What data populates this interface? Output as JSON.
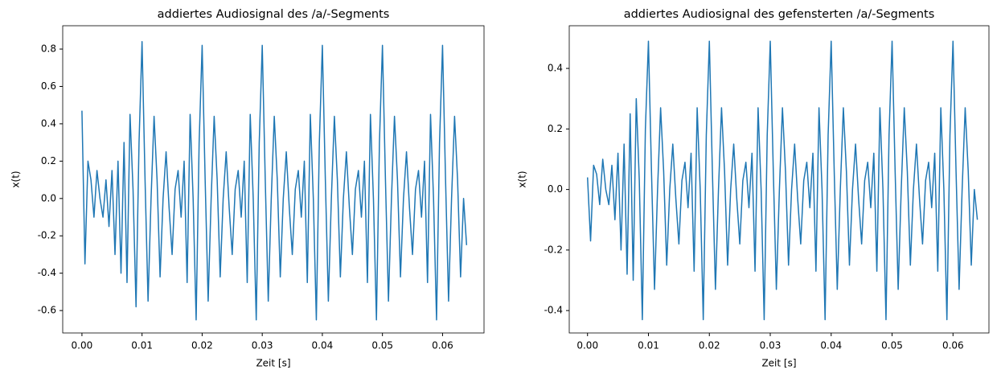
{
  "chart_data": [
    {
      "type": "line",
      "title": "addiertes Audiosignal des /a/-Segments",
      "xlabel": "Zeit [s]",
      "ylabel": "x(t)",
      "x": [
        0,
        0.0005,
        0.001,
        0.0015,
        0.002,
        0.0025,
        0.003,
        0.0035,
        0.004,
        0.0045,
        0.005,
        0.0055,
        0.006,
        0.0065,
        0.007,
        0.0075,
        0.008,
        0.0085,
        0.009,
        0.0095,
        0.01,
        0.0105,
        0.011,
        0.0115,
        0.012,
        0.0125,
        0.013,
        0.0135,
        0.014,
        0.0145,
        0.015,
        0.0155,
        0.016,
        0.0165,
        0.017,
        0.0175,
        0.018,
        0.0185,
        0.019,
        0.0195,
        0.02,
        0.0205,
        0.021,
        0.0215,
        0.022,
        0.0225,
        0.023,
        0.0235,
        0.024,
        0.0245,
        0.025,
        0.0255,
        0.026,
        0.0265,
        0.027,
        0.0275,
        0.028,
        0.0285,
        0.029,
        0.0295,
        0.03,
        0.0305,
        0.031,
        0.0315,
        0.032,
        0.0325,
        0.033,
        0.0335,
        0.034,
        0.0345,
        0.035,
        0.0355,
        0.036,
        0.0365,
        0.037,
        0.0375,
        0.038,
        0.0385,
        0.039,
        0.0395,
        0.04,
        0.0405,
        0.041,
        0.0415,
        0.042,
        0.0425,
        0.043,
        0.0435,
        0.044,
        0.0445,
        0.045,
        0.0455,
        0.046,
        0.0465,
        0.047,
        0.0475,
        0.048,
        0.0485,
        0.049,
        0.0495,
        0.05,
        0.0505,
        0.051,
        0.0515,
        0.052,
        0.0525,
        0.053,
        0.0535,
        0.054,
        0.0545,
        0.055,
        0.0555,
        0.056,
        0.0565,
        0.057,
        0.0575,
        0.058,
        0.0585,
        0.059,
        0.0595,
        0.06,
        0.0605,
        0.061,
        0.0615,
        0.062,
        0.0625,
        0.063,
        0.0635,
        0.064
      ],
      "series": [
        {
          "name": "x(t)",
          "color": "#1f77b4",
          "values": [
            0.47,
            -0.35,
            0.2,
            0.1,
            -0.1,
            0.15,
            0.0,
            -0.1,
            0.1,
            -0.15,
            0.15,
            -0.3,
            0.2,
            -0.4,
            0.3,
            -0.45,
            0.45,
            0.05,
            -0.58,
            0.3,
            0.84,
            0.1,
            -0.55,
            0.0,
            0.44,
            0.1,
            -0.42,
            0.0,
            0.25,
            -0.05,
            -0.3,
            0.05,
            0.15,
            -0.1,
            0.2,
            -0.45,
            0.45,
            0.0,
            -0.65,
            0.3,
            0.82,
            0.1,
            -0.55,
            0.0,
            0.44,
            0.1,
            -0.42,
            0.0,
            0.25,
            -0.05,
            -0.3,
            0.05,
            0.15,
            -0.1,
            0.2,
            -0.45,
            0.45,
            0.0,
            -0.65,
            0.3,
            0.82,
            0.1,
            -0.55,
            0.0,
            0.44,
            0.1,
            -0.42,
            0.0,
            0.25,
            -0.05,
            -0.3,
            0.05,
            0.15,
            -0.1,
            0.2,
            -0.45,
            0.45,
            0.0,
            -0.65,
            0.3,
            0.82,
            0.1,
            -0.55,
            0.0,
            0.44,
            0.1,
            -0.42,
            0.0,
            0.25,
            -0.05,
            -0.3,
            0.05,
            0.15,
            -0.1,
            0.2,
            -0.45,
            0.45,
            0.0,
            -0.65,
            0.3,
            0.82,
            0.1,
            -0.55,
            0.0,
            0.44,
            0.1,
            -0.42,
            0.0,
            0.25,
            -0.05,
            -0.3,
            0.05,
            0.15,
            -0.1,
            0.2,
            -0.45,
            0.45,
            0.0,
            -0.65,
            0.3,
            0.82,
            0.1,
            -0.55,
            0.0,
            0.44,
            0.1,
            -0.42,
            0.0,
            -0.25
          ]
        }
      ],
      "xlim": [
        -0.0032,
        0.0669
      ],
      "ylim": [
        -0.72,
        0.925
      ],
      "xticks": [
        {
          "value": 0,
          "label": "0.00"
        },
        0.01,
        0.02,
        0.03,
        0.04,
        0.05,
        0.06
      ],
      "yticks": [
        -0.6,
        -0.4,
        -0.2,
        {
          "value": 0,
          "label": "0.0"
        },
        0.2,
        0.4,
        0.6,
        0.8
      ]
    },
    {
      "type": "line",
      "title": "addiertes Audiosignal des gefensterten /a/-Segments",
      "xlabel": "Zeit [s]",
      "ylabel": "x(t)",
      "x": [
        0,
        0.0005,
        0.001,
        0.0015,
        0.002,
        0.0025,
        0.003,
        0.0035,
        0.004,
        0.0045,
        0.005,
        0.0055,
        0.006,
        0.0065,
        0.007,
        0.0075,
        0.008,
        0.0085,
        0.009,
        0.0095,
        0.01,
        0.0105,
        0.011,
        0.0115,
        0.012,
        0.0125,
        0.013,
        0.0135,
        0.014,
        0.0145,
        0.015,
        0.0155,
        0.016,
        0.0165,
        0.017,
        0.0175,
        0.018,
        0.0185,
        0.019,
        0.0195,
        0.02,
        0.0205,
        0.021,
        0.0215,
        0.022,
        0.0225,
        0.023,
        0.0235,
        0.024,
        0.0245,
        0.025,
        0.0255,
        0.026,
        0.0265,
        0.027,
        0.0275,
        0.028,
        0.0285,
        0.029,
        0.0295,
        0.03,
        0.0305,
        0.031,
        0.0315,
        0.032,
        0.0325,
        0.033,
        0.0335,
        0.034,
        0.0345,
        0.035,
        0.0355,
        0.036,
        0.0365,
        0.037,
        0.0375,
        0.038,
        0.0385,
        0.039,
        0.0395,
        0.04,
        0.0405,
        0.041,
        0.0415,
        0.042,
        0.0425,
        0.043,
        0.0435,
        0.044,
        0.0445,
        0.045,
        0.0455,
        0.046,
        0.0465,
        0.047,
        0.0475,
        0.048,
        0.0485,
        0.049,
        0.0495,
        0.05,
        0.0505,
        0.051,
        0.0515,
        0.052,
        0.0525,
        0.053,
        0.0535,
        0.054,
        0.0545,
        0.055,
        0.0555,
        0.056,
        0.0565,
        0.057,
        0.0575,
        0.058,
        0.0585,
        0.059,
        0.0595,
        0.06,
        0.0605,
        0.061,
        0.0615,
        0.062,
        0.0625,
        0.063,
        0.0635,
        0.064
      ],
      "series": [
        {
          "name": "x(t)",
          "color": "#1f77b4",
          "values": [
            0.04,
            -0.17,
            0.08,
            0.05,
            -0.05,
            0.1,
            0.0,
            -0.05,
            0.08,
            -0.1,
            0.12,
            -0.2,
            0.15,
            -0.28,
            0.25,
            -0.3,
            0.3,
            0.03,
            -0.43,
            0.2,
            0.49,
            0.06,
            -0.33,
            0.0,
            0.27,
            0.06,
            -0.25,
            0.0,
            0.15,
            -0.03,
            -0.18,
            0.03,
            0.09,
            -0.06,
            0.12,
            -0.27,
            0.27,
            0.0,
            -0.43,
            0.18,
            0.49,
            0.06,
            -0.33,
            0.0,
            0.27,
            0.06,
            -0.25,
            0.0,
            0.15,
            -0.03,
            -0.18,
            0.03,
            0.09,
            -0.06,
            0.12,
            -0.27,
            0.27,
            0.0,
            -0.43,
            0.18,
            0.49,
            0.06,
            -0.33,
            0.0,
            0.27,
            0.06,
            -0.25,
            0.0,
            0.15,
            -0.03,
            -0.18,
            0.03,
            0.09,
            -0.06,
            0.12,
            -0.27,
            0.27,
            0.0,
            -0.43,
            0.18,
            0.49,
            0.06,
            -0.33,
            0.0,
            0.27,
            0.06,
            -0.25,
            0.0,
            0.15,
            -0.03,
            -0.18,
            0.03,
            0.09,
            -0.06,
            0.12,
            -0.27,
            0.27,
            0.0,
            -0.43,
            0.18,
            0.49,
            0.06,
            -0.33,
            0.0,
            0.27,
            0.06,
            -0.25,
            0.0,
            0.15,
            -0.03,
            -0.18,
            0.03,
            0.09,
            -0.06,
            0.12,
            -0.27,
            0.27,
            0.0,
            -0.43,
            0.18,
            0.49,
            0.06,
            -0.33,
            0.0,
            0.27,
            0.06,
            -0.25,
            0.0,
            -0.1
          ]
        }
      ],
      "xlim": [
        -0.003,
        0.0659
      ],
      "ylim": [
        -0.474,
        0.541
      ],
      "xticks": [
        {
          "value": 0,
          "label": "0.00"
        },
        0.01,
        0.02,
        0.03,
        0.04,
        0.05,
        0.06
      ],
      "yticks": [
        -0.4,
        -0.2,
        {
          "value": 0,
          "label": "0.0"
        },
        0.2,
        0.4
      ]
    }
  ]
}
